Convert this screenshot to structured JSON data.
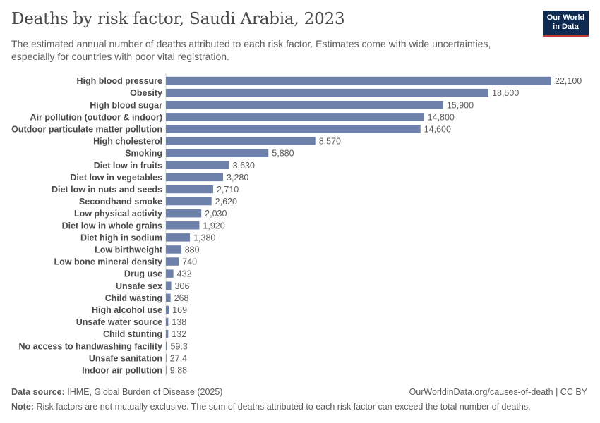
{
  "header": {
    "title": "Deaths by risk factor, Saudi Arabia, 2023",
    "subtitle": "The estimated annual number of deaths attributed to each risk factor. Estimates come with wide uncertainties, especially for countries with poor vital registration.",
    "logo_line1": "Our World",
    "logo_line2": "in Data"
  },
  "colors": {
    "bar": "#6d81aa",
    "logo_bg": "#0f2b52",
    "logo_accent": "#c4383a"
  },
  "chart_data": {
    "type": "bar",
    "orientation": "horizontal",
    "title": "Deaths by risk factor, Saudi Arabia, 2023",
    "xlabel": "",
    "ylabel": "",
    "xlim": [
      0,
      22100
    ],
    "categories": [
      "High blood pressure",
      "Obesity",
      "High blood sugar",
      "Air pollution (outdoor & indoor)",
      "Outdoor particulate matter pollution",
      "High cholesterol",
      "Smoking",
      "Diet low in fruits",
      "Diet low in vegetables",
      "Diet low in nuts and seeds",
      "Secondhand smoke",
      "Low physical activity",
      "Diet low in whole grains",
      "Diet high in sodium",
      "Low birthweight",
      "Low bone mineral density",
      "Drug use",
      "Unsafe sex",
      "Child wasting",
      "High alcohol use",
      "Unsafe water source",
      "Child stunting",
      "No access to handwashing facility",
      "Unsafe sanitation",
      "Indoor air pollution"
    ],
    "values": [
      22100,
      18500,
      15900,
      14800,
      14600,
      8570,
      5880,
      3630,
      3280,
      2710,
      2620,
      2030,
      1920,
      1380,
      880,
      740,
      432,
      306,
      268,
      169,
      138,
      132,
      59.3,
      27.4,
      9.88
    ],
    "labels": [
      "22,100",
      "18,500",
      "15,900",
      "14,800",
      "14,600",
      "8,570",
      "5,880",
      "3,630",
      "3,280",
      "2,710",
      "2,620",
      "2,030",
      "1,920",
      "1,380",
      "880",
      "740",
      "432",
      "306",
      "268",
      "169",
      "138",
      "132",
      "59.3",
      "27.4",
      "9.88"
    ]
  },
  "footer": {
    "source_label": "Data source:",
    "source_text": "IHME, Global Burden of Disease (2025)",
    "link": "OurWorldinData.org/causes-of-death | CC BY",
    "note_label": "Note:",
    "note_text": "Risk factors are not mutually exclusive. The sum of deaths attributed to each risk factor can exceed the total number of deaths."
  }
}
